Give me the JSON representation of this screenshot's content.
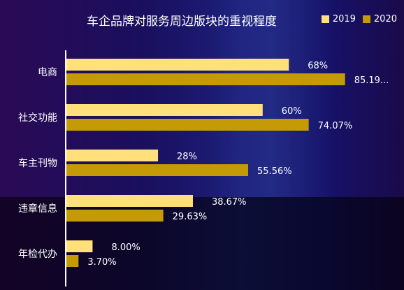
{
  "chart_data": {
    "type": "bar",
    "orientation": "horizontal",
    "title": "车企品牌对服务周边版块的重视程度",
    "categories": [
      "电商",
      "社交功能",
      "车主刊物",
      "违章信息",
      "年检代办"
    ],
    "series": [
      {
        "name": "2019",
        "color": "#FFE07A",
        "values": [
          68,
          60,
          28,
          38.67,
          8.0
        ],
        "labels": [
          "68%",
          "60%",
          "28%",
          "38.67%",
          "8.00%"
        ]
      },
      {
        "name": "2020",
        "color": "#C49A06",
        "values": [
          85.19,
          74.07,
          55.56,
          29.63,
          3.7
        ],
        "labels": [
          "85.19...",
          "74.07%",
          "55.56%",
          "29.63%",
          "3.70%"
        ]
      }
    ],
    "xlim": [
      0,
      100
    ],
    "legend": "top-right",
    "grid": false
  }
}
